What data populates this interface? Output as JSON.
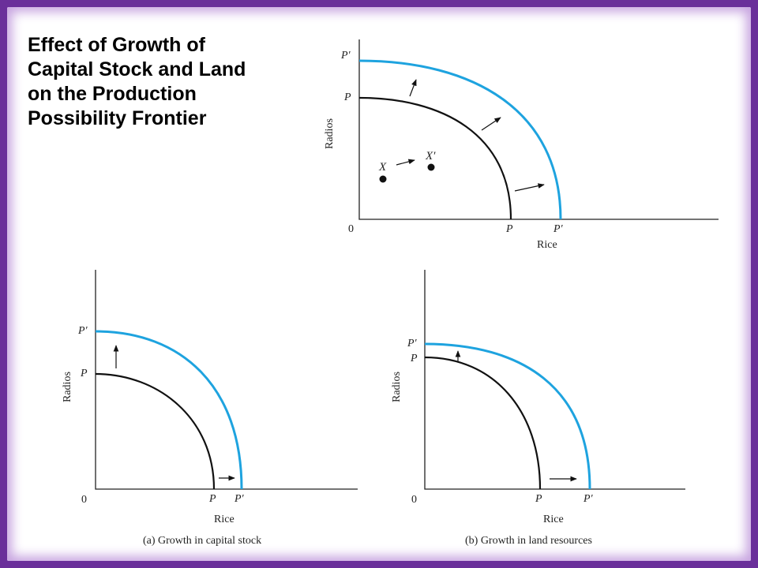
{
  "title_lines": [
    "Effect of Growth of",
    "Capital Stock and Land",
    "on the Production",
    "Possibility Frontier"
  ],
  "colors": {
    "frame": "#6a2f9a",
    "frame_glow": "#c7a4e0",
    "new_frontier": "#1ea3df",
    "old_frontier": "#111111"
  },
  "top_diagram": {
    "xlabel": "Rice",
    "ylabel": "Radios",
    "origin": "0",
    "x_ticks": [
      "P",
      "P′"
    ],
    "y_ticks": [
      "P′",
      "P"
    ],
    "points": [
      "X",
      "X′"
    ]
  },
  "panel_a": {
    "xlabel": "Rice",
    "ylabel": "Radios",
    "origin": "0",
    "x_ticks": [
      "P",
      "P′"
    ],
    "y_ticks": [
      "P′",
      "P"
    ],
    "caption": "(a) Growth in capital stock"
  },
  "panel_b": {
    "xlabel": "Rice",
    "ylabel": "Radios",
    "origin": "0",
    "x_ticks": [
      "P",
      "P′"
    ],
    "y_ticks": [
      "P′",
      "P"
    ],
    "caption": "(b) Growth in land resources"
  }
}
